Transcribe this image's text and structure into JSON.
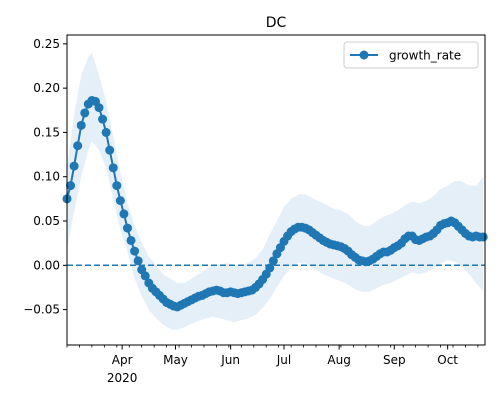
{
  "chart_data": {
    "type": "line",
    "title": "DC",
    "xlabel": "",
    "ylabel": "",
    "x_range": [
      "2020-03-01",
      "2020-10-22"
    ],
    "ylim": [
      -0.09,
      0.26
    ],
    "yticks": [
      -0.05,
      0.0,
      0.05,
      0.1,
      0.15,
      0.2,
      0.25
    ],
    "ytick_labels": [
      "−0.05",
      "0.00",
      "0.05",
      "0.10",
      "0.15",
      "0.20",
      "0.25"
    ],
    "xticks": [
      {
        "date": "2020-04-01",
        "label": "Apr"
      },
      {
        "date": "2020-05-01",
        "label": "May"
      },
      {
        "date": "2020-06-01",
        "label": "Jun"
      },
      {
        "date": "2020-07-01",
        "label": "Jul"
      },
      {
        "date": "2020-08-01",
        "label": "Aug"
      },
      {
        "date": "2020-09-01",
        "label": "Sep"
      },
      {
        "date": "2020-10-01",
        "label": "Oct"
      }
    ],
    "x_year_label": "2020",
    "grid": false,
    "legend": {
      "position": "top-right",
      "entries": [
        "growth_rate"
      ]
    },
    "reference_line": {
      "y": 0.0,
      "style": "dashed"
    },
    "colors": {
      "series": "#1f77b4",
      "band": "#dce9f5"
    },
    "series": [
      {
        "name": "growth_rate",
        "style": "line-marker",
        "points": [
          [
            "2020-03-01",
            0.075
          ],
          [
            "2020-03-03",
            0.09
          ],
          [
            "2020-03-05",
            0.112
          ],
          [
            "2020-03-07",
            0.135
          ],
          [
            "2020-03-09",
            0.158
          ],
          [
            "2020-03-11",
            0.172
          ],
          [
            "2020-03-13",
            0.182
          ],
          [
            "2020-03-15",
            0.186
          ],
          [
            "2020-03-17",
            0.185
          ],
          [
            "2020-03-19",
            0.178
          ],
          [
            "2020-03-21",
            0.165
          ],
          [
            "2020-03-23",
            0.15
          ],
          [
            "2020-03-25",
            0.13
          ],
          [
            "2020-03-27",
            0.11
          ],
          [
            "2020-03-29",
            0.09
          ],
          [
            "2020-03-31",
            0.073
          ],
          [
            "2020-04-02",
            0.058
          ],
          [
            "2020-04-04",
            0.042
          ],
          [
            "2020-04-06",
            0.028
          ],
          [
            "2020-04-08",
            0.016
          ],
          [
            "2020-04-10",
            0.005
          ],
          [
            "2020-04-12",
            -0.005
          ],
          [
            "2020-04-14",
            -0.012
          ],
          [
            "2020-04-16",
            -0.02
          ],
          [
            "2020-04-18",
            -0.026
          ],
          [
            "2020-04-20",
            -0.03
          ],
          [
            "2020-04-22",
            -0.034
          ],
          [
            "2020-04-24",
            -0.038
          ],
          [
            "2020-04-26",
            -0.042
          ],
          [
            "2020-04-28",
            -0.044
          ],
          [
            "2020-04-30",
            -0.046
          ],
          [
            "2020-05-02",
            -0.047
          ],
          [
            "2020-05-04",
            -0.045
          ],
          [
            "2020-05-06",
            -0.043
          ],
          [
            "2020-05-08",
            -0.041
          ],
          [
            "2020-05-10",
            -0.039
          ],
          [
            "2020-05-12",
            -0.037
          ],
          [
            "2020-05-14",
            -0.035
          ],
          [
            "2020-05-16",
            -0.034
          ],
          [
            "2020-05-18",
            -0.032
          ],
          [
            "2020-05-20",
            -0.03
          ],
          [
            "2020-05-22",
            -0.029
          ],
          [
            "2020-05-24",
            -0.028
          ],
          [
            "2020-05-26",
            -0.029
          ],
          [
            "2020-05-28",
            -0.031
          ],
          [
            "2020-05-30",
            -0.031
          ],
          [
            "2020-06-01",
            -0.03
          ],
          [
            "2020-06-03",
            -0.031
          ],
          [
            "2020-06-05",
            -0.032
          ],
          [
            "2020-06-07",
            -0.031
          ],
          [
            "2020-06-09",
            -0.03
          ],
          [
            "2020-06-11",
            -0.029
          ],
          [
            "2020-06-13",
            -0.028
          ],
          [
            "2020-06-15",
            -0.025
          ],
          [
            "2020-06-17",
            -0.021
          ],
          [
            "2020-06-19",
            -0.016
          ],
          [
            "2020-06-21",
            -0.01
          ],
          [
            "2020-06-23",
            -0.003
          ],
          [
            "2020-06-25",
            0.005
          ],
          [
            "2020-06-27",
            0.013
          ],
          [
            "2020-06-29",
            0.02
          ],
          [
            "2020-07-01",
            0.027
          ],
          [
            "2020-07-03",
            0.033
          ],
          [
            "2020-07-05",
            0.038
          ],
          [
            "2020-07-07",
            0.041
          ],
          [
            "2020-07-09",
            0.043
          ],
          [
            "2020-07-11",
            0.043
          ],
          [
            "2020-07-13",
            0.042
          ],
          [
            "2020-07-15",
            0.04
          ],
          [
            "2020-07-17",
            0.037
          ],
          [
            "2020-07-19",
            0.034
          ],
          [
            "2020-07-21",
            0.031
          ],
          [
            "2020-07-23",
            0.028
          ],
          [
            "2020-07-25",
            0.026
          ],
          [
            "2020-07-27",
            0.024
          ],
          [
            "2020-07-29",
            0.023
          ],
          [
            "2020-07-31",
            0.022
          ],
          [
            "2020-08-02",
            0.021
          ],
          [
            "2020-08-04",
            0.019
          ],
          [
            "2020-08-06",
            0.016
          ],
          [
            "2020-08-08",
            0.012
          ],
          [
            "2020-08-10",
            0.009
          ],
          [
            "2020-08-12",
            0.006
          ],
          [
            "2020-08-14",
            0.005
          ],
          [
            "2020-08-16",
            0.004
          ],
          [
            "2020-08-18",
            0.005
          ],
          [
            "2020-08-20",
            0.007
          ],
          [
            "2020-08-22",
            0.01
          ],
          [
            "2020-08-24",
            0.013
          ],
          [
            "2020-08-26",
            0.015
          ],
          [
            "2020-08-28",
            0.015
          ],
          [
            "2020-08-30",
            0.017
          ],
          [
            "2020-09-01",
            0.02
          ],
          [
            "2020-09-03",
            0.022
          ],
          [
            "2020-09-05",
            0.025
          ],
          [
            "2020-09-07",
            0.03
          ],
          [
            "2020-09-09",
            0.033
          ],
          [
            "2020-09-11",
            0.033
          ],
          [
            "2020-09-13",
            0.029
          ],
          [
            "2020-09-15",
            0.028
          ],
          [
            "2020-09-17",
            0.03
          ],
          [
            "2020-09-19",
            0.032
          ],
          [
            "2020-09-21",
            0.033
          ],
          [
            "2020-09-23",
            0.036
          ],
          [
            "2020-09-25",
            0.04
          ],
          [
            "2020-09-27",
            0.045
          ],
          [
            "2020-09-29",
            0.047
          ],
          [
            "2020-10-01",
            0.048
          ],
          [
            "2020-10-03",
            0.05
          ],
          [
            "2020-10-05",
            0.048
          ],
          [
            "2020-10-07",
            0.044
          ],
          [
            "2020-10-09",
            0.04
          ],
          [
            "2020-10-11",
            0.036
          ],
          [
            "2020-10-13",
            0.033
          ],
          [
            "2020-10-15",
            0.032
          ],
          [
            "2020-10-17",
            0.033
          ],
          [
            "2020-10-19",
            0.032
          ],
          [
            "2020-10-21",
            0.032
          ]
        ]
      }
    ],
    "band": {
      "points": [
        [
          "2020-03-01",
          0.02,
          0.11
        ],
        [
          "2020-03-05",
          0.06,
          0.17
        ],
        [
          "2020-03-09",
          0.1,
          0.215
        ],
        [
          "2020-03-13",
          0.13,
          0.235
        ],
        [
          "2020-03-15",
          0.14,
          0.24
        ],
        [
          "2020-03-19",
          0.13,
          0.215
        ],
        [
          "2020-03-23",
          0.11,
          0.185
        ],
        [
          "2020-03-27",
          0.075,
          0.145
        ],
        [
          "2020-03-31",
          0.04,
          0.105
        ],
        [
          "2020-04-04",
          0.015,
          0.07
        ],
        [
          "2020-04-08",
          -0.015,
          0.045
        ],
        [
          "2020-04-12",
          -0.035,
          0.025
        ],
        [
          "2020-04-16",
          -0.05,
          0.01
        ],
        [
          "2020-04-20",
          -0.06,
          0.0
        ],
        [
          "2020-04-24",
          -0.067,
          -0.01
        ],
        [
          "2020-04-28",
          -0.072,
          -0.015
        ],
        [
          "2020-05-02",
          -0.073,
          -0.02
        ],
        [
          "2020-05-06",
          -0.07,
          -0.02
        ],
        [
          "2020-05-10",
          -0.066,
          -0.015
        ],
        [
          "2020-05-14",
          -0.063,
          -0.01
        ],
        [
          "2020-05-18",
          -0.06,
          -0.005
        ],
        [
          "2020-05-22",
          -0.058,
          0.0
        ],
        [
          "2020-05-26",
          -0.06,
          0.0
        ],
        [
          "2020-05-30",
          -0.062,
          0.003
        ],
        [
          "2020-06-03",
          -0.064,
          0.0
        ],
        [
          "2020-06-07",
          -0.062,
          0.0
        ],
        [
          "2020-06-11",
          -0.06,
          0.003
        ],
        [
          "2020-06-15",
          -0.056,
          0.008
        ],
        [
          "2020-06-19",
          -0.048,
          0.018
        ],
        [
          "2020-06-23",
          -0.038,
          0.035
        ],
        [
          "2020-06-27",
          -0.025,
          0.05
        ],
        [
          "2020-07-01",
          -0.012,
          0.066
        ],
        [
          "2020-07-05",
          -0.003,
          0.075
        ],
        [
          "2020-07-09",
          0.003,
          0.08
        ],
        [
          "2020-07-13",
          0.002,
          0.08
        ],
        [
          "2020-07-17",
          -0.003,
          0.076
        ],
        [
          "2020-07-21",
          -0.008,
          0.072
        ],
        [
          "2020-07-25",
          -0.012,
          0.068
        ],
        [
          "2020-07-29",
          -0.015,
          0.064
        ],
        [
          "2020-08-02",
          -0.018,
          0.062
        ],
        [
          "2020-08-06",
          -0.022,
          0.058
        ],
        [
          "2020-08-10",
          -0.027,
          0.05
        ],
        [
          "2020-08-14",
          -0.03,
          0.045
        ],
        [
          "2020-08-18",
          -0.03,
          0.044
        ],
        [
          "2020-08-22",
          -0.026,
          0.05
        ],
        [
          "2020-08-26",
          -0.022,
          0.055
        ],
        [
          "2020-08-30",
          -0.02,
          0.058
        ],
        [
          "2020-09-03",
          -0.016,
          0.062
        ],
        [
          "2020-09-07",
          -0.012,
          0.068
        ],
        [
          "2020-09-11",
          -0.008,
          0.072
        ],
        [
          "2020-09-15",
          -0.01,
          0.07
        ],
        [
          "2020-09-19",
          -0.008,
          0.073
        ],
        [
          "2020-09-23",
          -0.004,
          0.078
        ],
        [
          "2020-09-27",
          0.002,
          0.086
        ],
        [
          "2020-10-01",
          0.006,
          0.09
        ],
        [
          "2020-10-05",
          0.004,
          0.095
        ],
        [
          "2020-10-09",
          -0.002,
          0.095
        ],
        [
          "2020-10-13",
          -0.01,
          0.09
        ],
        [
          "2020-10-17",
          -0.02,
          0.09
        ],
        [
          "2020-10-21",
          -0.03,
          0.1
        ]
      ]
    }
  }
}
